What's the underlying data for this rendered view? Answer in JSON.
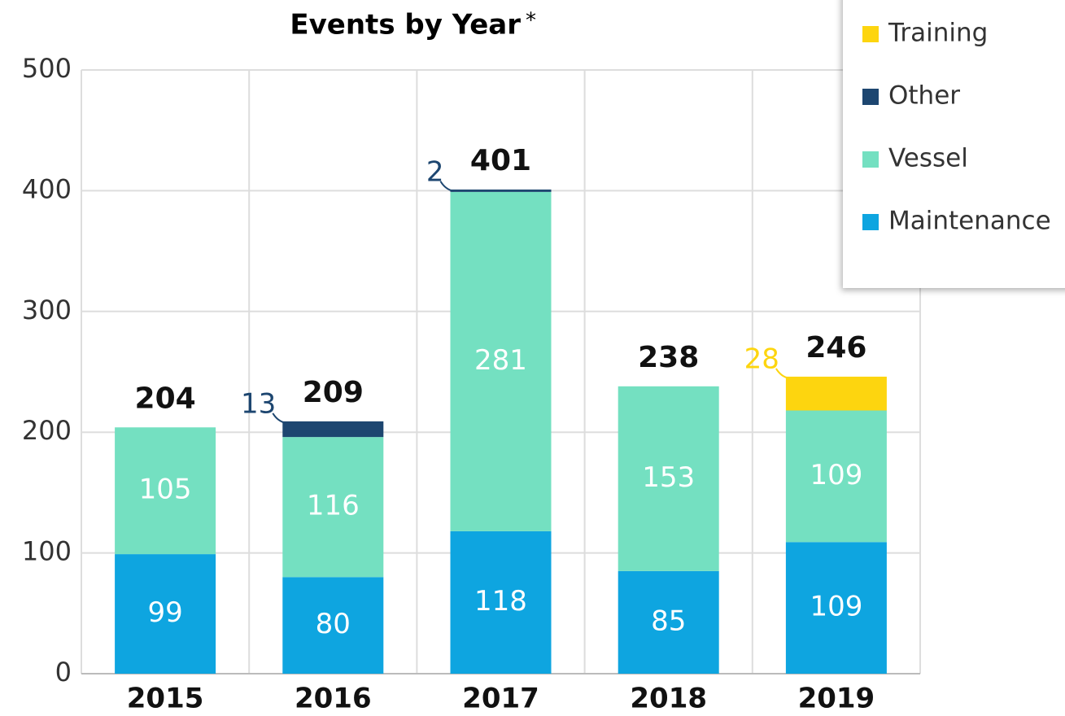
{
  "chart_data": {
    "type": "stacked_bar",
    "title": "Events by Year",
    "title_note": "*",
    "categories": [
      "2015",
      "2016",
      "2017",
      "2018",
      "2019"
    ],
    "series": [
      {
        "name": "Maintenance",
        "color": "#0ea5e0",
        "values": [
          99,
          80,
          118,
          85,
          109
        ]
      },
      {
        "name": "Vessel",
        "color": "#74e0c1",
        "values": [
          105,
          116,
          281,
          153,
          109
        ]
      },
      {
        "name": "Other",
        "color": "#1d4670",
        "values": [
          null,
          13,
          2,
          null,
          null
        ]
      },
      {
        "name": "Training",
        "color": "#fdd50f",
        "values": [
          null,
          null,
          null,
          null,
          28
        ]
      }
    ],
    "totals": [
      204,
      209,
      401,
      238,
      246
    ],
    "ylim": [
      0,
      500
    ],
    "yticks": [
      0,
      100,
      200,
      300,
      400,
      500
    ],
    "grid": true,
    "legend": "upper right"
  }
}
